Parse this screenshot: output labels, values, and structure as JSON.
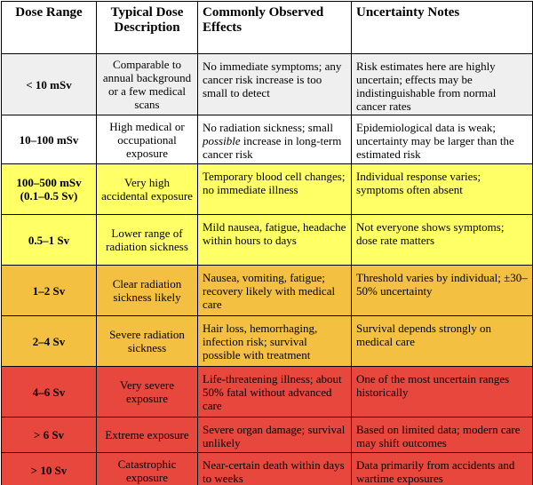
{
  "table": {
    "header": [
      "Dose Range",
      "Typical Dose Description",
      "Commonly Observed Effects",
      "Uncertainty Notes"
    ],
    "rows": [
      [
        "< 10 mSv",
        "Comparable to annual background or a few medical scans",
        "No immediate symptoms; any cancer risk increase is too small to detect",
        "Risk estimates here are highly uncertain; effects may be indistinguishable from normal cancer rates"
      ],
      [
        "10–100 mSv",
        "High medical or occupational exposure",
        [
          "No radiation sickness; small ",
          "possible",
          " increase in long-term cancer risk"
        ],
        "Epidemiological data is weak; uncertainty may be larger than the estimated risk"
      ],
      [
        "100–500 mSv (0.1–0.5 Sv)",
        "Very high accidental exposure",
        "Temporary blood cell changes; no immediate illness",
        "Individual response varies; symptoms often absent"
      ],
      [
        "0.5–1 Sv",
        "Lower range of radiation sickness",
        "Mild nausea, fatigue, headache within hours to days",
        "Not everyone shows symptoms; dose rate matters"
      ],
      [
        "1–2 Sv",
        "Clear radiation sickness likely",
        "Nausea, vomiting, fatigue; recovery likely with medical care",
        "Threshold varies by individual; ±30–50% uncertainty"
      ],
      [
        "2–4 Sv",
        "Severe radiation sickness",
        "Hair loss, hemorrhaging, infection risk; survival possible with treatment",
        "Survival depends strongly on medical care"
      ],
      [
        "4–6 Sv",
        "Very severe exposure",
        "Life-threatening illness; about 50% fatal without advanced care",
        "One of the most uncertain ranges historically"
      ],
      [
        "> 6 Sv",
        "Extreme exposure",
        "Severe organ damage; survival unlikely",
        "Based on limited data; modern care may shift outcomes"
      ],
      [
        "> 10 Sv",
        "Catastrophic exposure",
        "Near-certain death within days to weeks",
        "Data primarily from accidents and wartime exposures"
      ]
    ]
  }
}
